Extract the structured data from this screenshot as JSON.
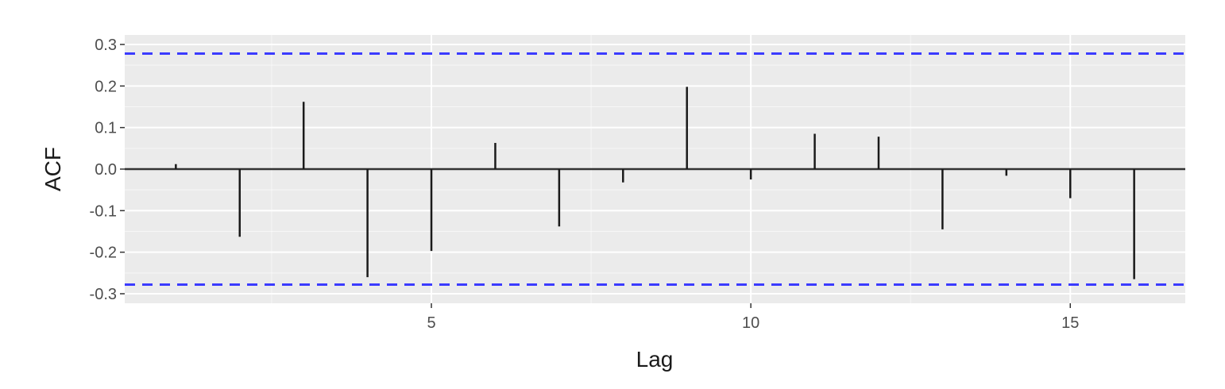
{
  "chart_data": {
    "type": "bar",
    "subtype": "acf-stem",
    "xlabel": "Lag",
    "ylabel": "ACF",
    "x": [
      1,
      2,
      3,
      4,
      5,
      6,
      7,
      8,
      9,
      10,
      11,
      12,
      13,
      14,
      15,
      16
    ],
    "values": [
      0.012,
      -0.163,
      0.162,
      -0.26,
      -0.197,
      0.063,
      -0.138,
      -0.032,
      0.198,
      -0.025,
      0.085,
      0.078,
      -0.145,
      -0.016,
      -0.07,
      -0.265
    ],
    "confidence_bounds": [
      0.278,
      -0.278
    ],
    "xlim": [
      0.2,
      16.8
    ],
    "ylim": [
      -0.3,
      0.3
    ],
    "x_ticks": [
      5,
      10,
      15
    ],
    "x_tick_labels": [
      "5",
      "10",
      "15"
    ],
    "y_ticks": [
      -0.3,
      -0.2,
      -0.1,
      0.0,
      0.1,
      0.2,
      0.3
    ],
    "y_tick_labels": [
      "-0.3",
      "-0.2",
      "-0.1",
      "0.0",
      "0.1",
      "0.2",
      "0.3"
    ],
    "grid": true,
    "colors": {
      "panel_background": "#ebebeb",
      "grid": "#ffffff",
      "bars": "#1a1a1a",
      "zero_line": "#333333",
      "confidence_line": "#3b3bff"
    }
  }
}
